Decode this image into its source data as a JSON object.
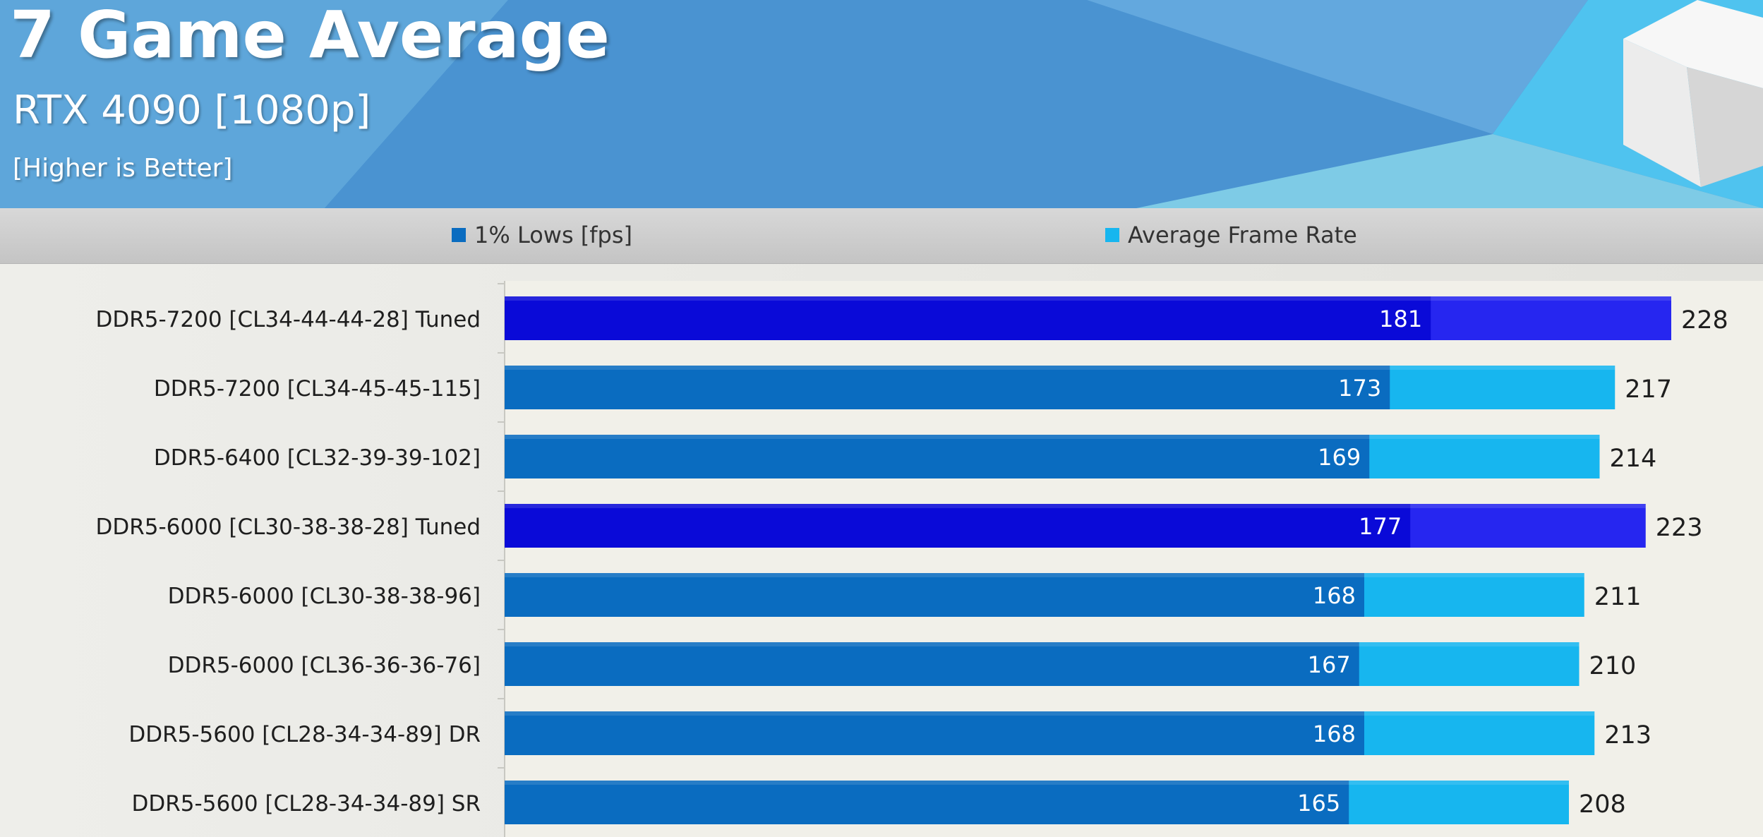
{
  "header": {
    "title": "7 Game Average",
    "subtitle": "RTX 4090 [1080p]",
    "note": "[Higher is Better]"
  },
  "colors": {
    "lows_standard": "#0a6cc0",
    "avg_standard": "#17b6ef",
    "lows_tuned": "#0a0ad8",
    "avg_tuned": "#2626f0",
    "legend_lows": "#0a6cc0",
    "legend_avg": "#17b6ef"
  },
  "chart_data": {
    "type": "bar",
    "orientation": "horizontal",
    "stacked_overlay": true,
    "title": "7 Game Average",
    "legend": {
      "placement": "top",
      "items": [
        "1% Lows [fps]",
        "Average Frame Rate"
      ]
    },
    "categories": [
      "DDR5-7200 [CL34-44-44-28] Tuned",
      "DDR5-7200 [CL34-45-45-115]",
      "DDR5-6400 [CL32-39-39-102]",
      "DDR5-6000 [CL30-38-38-28] Tuned",
      "DDR5-6000 [CL30-38-38-96]",
      "DDR5-6000 [CL36-36-36-76]",
      "DDR5-5600 [CL28-34-34-89] DR",
      "DDR5-5600 [CL28-34-34-89] SR"
    ],
    "highlighted": [
      true,
      false,
      false,
      true,
      false,
      false,
      false,
      false
    ],
    "series": [
      {
        "name": "1% Lows [fps]",
        "values": [
          181,
          173,
          169,
          177,
          168,
          167,
          168,
          165
        ]
      },
      {
        "name": "Average Frame Rate",
        "values": [
          228,
          217,
          214,
          223,
          211,
          210,
          213,
          208
        ]
      }
    ],
    "xlim": [
      0,
      228
    ],
    "grid": false
  }
}
